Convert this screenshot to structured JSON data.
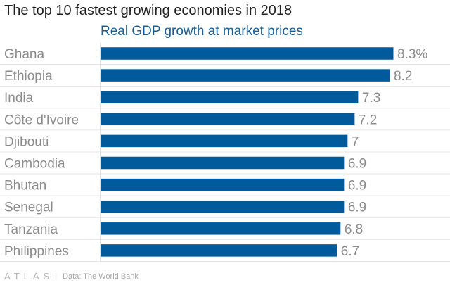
{
  "colors": {
    "bar": "#005a9c",
    "subtitle": "#1a5e96",
    "label": "#8c8c8c",
    "grid": "#e6e6e6"
  },
  "chart_data": {
    "type": "bar",
    "orientation": "horizontal",
    "title": "The top 10 fastest growing economies in 2018",
    "subtitle": "Real GDP growth at market prices",
    "categories": [
      "Ghana",
      "Ethiopia",
      "India",
      "Côte d'Ivoire",
      "Djibouti",
      "Cambodia",
      "Bhutan",
      "Senegal",
      "Tanzania",
      "Philippines"
    ],
    "values": [
      8.3,
      8.2,
      7.3,
      7.2,
      7,
      6.9,
      6.9,
      6.9,
      6.8,
      6.7
    ],
    "value_labels": [
      "8.3%",
      "8.2",
      "7.3",
      "7.2",
      "7",
      "6.9",
      "6.9",
      "6.9",
      "6.8",
      "6.7"
    ],
    "xlim": [
      0,
      8.3
    ],
    "grid": true
  },
  "footer": {
    "logo": "ATLAS",
    "source": "Data: The World Bank"
  }
}
